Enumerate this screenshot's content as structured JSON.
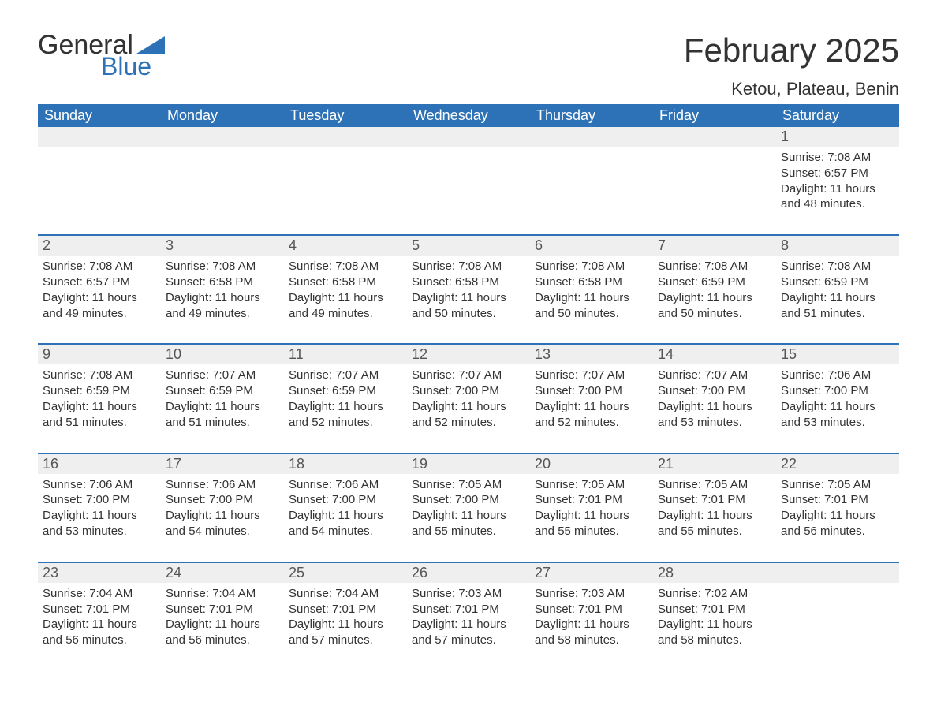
{
  "logo": {
    "text1": "General",
    "text2": "Blue",
    "color1": "#333333",
    "color2": "#2d72b6"
  },
  "title": "February 2025",
  "location": "Ketou, Plateau, Benin",
  "colors": {
    "header_bg": "#2d72b6",
    "header_text": "#ffffff",
    "daynum_bg": "#efefef",
    "row_border": "#2d72b6",
    "body_text": "#333333",
    "page_bg": "#ffffff"
  },
  "fonts": {
    "title_size": 42,
    "location_size": 22,
    "dayhead_size": 18,
    "cell_size": 15
  },
  "day_headers": [
    "Sunday",
    "Monday",
    "Tuesday",
    "Wednesday",
    "Thursday",
    "Friday",
    "Saturday"
  ],
  "weeks": [
    [
      null,
      null,
      null,
      null,
      null,
      null,
      {
        "n": "1",
        "sunrise": "Sunrise: 7:08 AM",
        "sunset": "Sunset: 6:57 PM",
        "daylight": "Daylight: 11 hours and 48 minutes."
      }
    ],
    [
      {
        "n": "2",
        "sunrise": "Sunrise: 7:08 AM",
        "sunset": "Sunset: 6:57 PM",
        "daylight": "Daylight: 11 hours and 49 minutes."
      },
      {
        "n": "3",
        "sunrise": "Sunrise: 7:08 AM",
        "sunset": "Sunset: 6:58 PM",
        "daylight": "Daylight: 11 hours and 49 minutes."
      },
      {
        "n": "4",
        "sunrise": "Sunrise: 7:08 AM",
        "sunset": "Sunset: 6:58 PM",
        "daylight": "Daylight: 11 hours and 49 minutes."
      },
      {
        "n": "5",
        "sunrise": "Sunrise: 7:08 AM",
        "sunset": "Sunset: 6:58 PM",
        "daylight": "Daylight: 11 hours and 50 minutes."
      },
      {
        "n": "6",
        "sunrise": "Sunrise: 7:08 AM",
        "sunset": "Sunset: 6:58 PM",
        "daylight": "Daylight: 11 hours and 50 minutes."
      },
      {
        "n": "7",
        "sunrise": "Sunrise: 7:08 AM",
        "sunset": "Sunset: 6:59 PM",
        "daylight": "Daylight: 11 hours and 50 minutes."
      },
      {
        "n": "8",
        "sunrise": "Sunrise: 7:08 AM",
        "sunset": "Sunset: 6:59 PM",
        "daylight": "Daylight: 11 hours and 51 minutes."
      }
    ],
    [
      {
        "n": "9",
        "sunrise": "Sunrise: 7:08 AM",
        "sunset": "Sunset: 6:59 PM",
        "daylight": "Daylight: 11 hours and 51 minutes."
      },
      {
        "n": "10",
        "sunrise": "Sunrise: 7:07 AM",
        "sunset": "Sunset: 6:59 PM",
        "daylight": "Daylight: 11 hours and 51 minutes."
      },
      {
        "n": "11",
        "sunrise": "Sunrise: 7:07 AM",
        "sunset": "Sunset: 6:59 PM",
        "daylight": "Daylight: 11 hours and 52 minutes."
      },
      {
        "n": "12",
        "sunrise": "Sunrise: 7:07 AM",
        "sunset": "Sunset: 7:00 PM",
        "daylight": "Daylight: 11 hours and 52 minutes."
      },
      {
        "n": "13",
        "sunrise": "Sunrise: 7:07 AM",
        "sunset": "Sunset: 7:00 PM",
        "daylight": "Daylight: 11 hours and 52 minutes."
      },
      {
        "n": "14",
        "sunrise": "Sunrise: 7:07 AM",
        "sunset": "Sunset: 7:00 PM",
        "daylight": "Daylight: 11 hours and 53 minutes."
      },
      {
        "n": "15",
        "sunrise": "Sunrise: 7:06 AM",
        "sunset": "Sunset: 7:00 PM",
        "daylight": "Daylight: 11 hours and 53 minutes."
      }
    ],
    [
      {
        "n": "16",
        "sunrise": "Sunrise: 7:06 AM",
        "sunset": "Sunset: 7:00 PM",
        "daylight": "Daylight: 11 hours and 53 minutes."
      },
      {
        "n": "17",
        "sunrise": "Sunrise: 7:06 AM",
        "sunset": "Sunset: 7:00 PM",
        "daylight": "Daylight: 11 hours and 54 minutes."
      },
      {
        "n": "18",
        "sunrise": "Sunrise: 7:06 AM",
        "sunset": "Sunset: 7:00 PM",
        "daylight": "Daylight: 11 hours and 54 minutes."
      },
      {
        "n": "19",
        "sunrise": "Sunrise: 7:05 AM",
        "sunset": "Sunset: 7:00 PM",
        "daylight": "Daylight: 11 hours and 55 minutes."
      },
      {
        "n": "20",
        "sunrise": "Sunrise: 7:05 AM",
        "sunset": "Sunset: 7:01 PM",
        "daylight": "Daylight: 11 hours and 55 minutes."
      },
      {
        "n": "21",
        "sunrise": "Sunrise: 7:05 AM",
        "sunset": "Sunset: 7:01 PM",
        "daylight": "Daylight: 11 hours and 55 minutes."
      },
      {
        "n": "22",
        "sunrise": "Sunrise: 7:05 AM",
        "sunset": "Sunset: 7:01 PM",
        "daylight": "Daylight: 11 hours and 56 minutes."
      }
    ],
    [
      {
        "n": "23",
        "sunrise": "Sunrise: 7:04 AM",
        "sunset": "Sunset: 7:01 PM",
        "daylight": "Daylight: 11 hours and 56 minutes."
      },
      {
        "n": "24",
        "sunrise": "Sunrise: 7:04 AM",
        "sunset": "Sunset: 7:01 PM",
        "daylight": "Daylight: 11 hours and 56 minutes."
      },
      {
        "n": "25",
        "sunrise": "Sunrise: 7:04 AM",
        "sunset": "Sunset: 7:01 PM",
        "daylight": "Daylight: 11 hours and 57 minutes."
      },
      {
        "n": "26",
        "sunrise": "Sunrise: 7:03 AM",
        "sunset": "Sunset: 7:01 PM",
        "daylight": "Daylight: 11 hours and 57 minutes."
      },
      {
        "n": "27",
        "sunrise": "Sunrise: 7:03 AM",
        "sunset": "Sunset: 7:01 PM",
        "daylight": "Daylight: 11 hours and 58 minutes."
      },
      {
        "n": "28",
        "sunrise": "Sunrise: 7:02 AM",
        "sunset": "Sunset: 7:01 PM",
        "daylight": "Daylight: 11 hours and 58 minutes."
      },
      null
    ]
  ]
}
